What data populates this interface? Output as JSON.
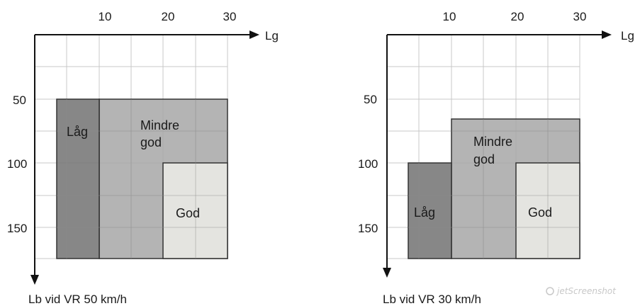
{
  "watermark": "jetScreenshot",
  "diagrams": [
    {
      "x_ticks": [
        "10",
        "20",
        "30"
      ],
      "y_ticks": [
        "50",
        "100",
        "150"
      ],
      "x_axis_label": "Lg",
      "caption": "Lb vid VR 50 km/h",
      "zones": {
        "low": {
          "label": "Låg"
        },
        "mid": {
          "label_line1": "Mindre",
          "label_line2": "god"
        },
        "good": {
          "label": "God"
        }
      }
    },
    {
      "x_ticks": [
        "10",
        "20",
        "30"
      ],
      "y_ticks": [
        "50",
        "100",
        "150"
      ],
      "x_axis_label": "Lg",
      "caption": "Lb vid VR 30 km/h",
      "zones": {
        "low": {
          "label": "Låg"
        },
        "mid": {
          "label_line1": "Mindre",
          "label_line2": "god"
        },
        "good": {
          "label": "God"
        }
      }
    }
  ],
  "colors": {
    "low": "#7a7a7a",
    "mid": "#a7a7a7",
    "good": "#e4e4e0",
    "grid": "#c9c9c9",
    "outline": "#333333"
  }
}
